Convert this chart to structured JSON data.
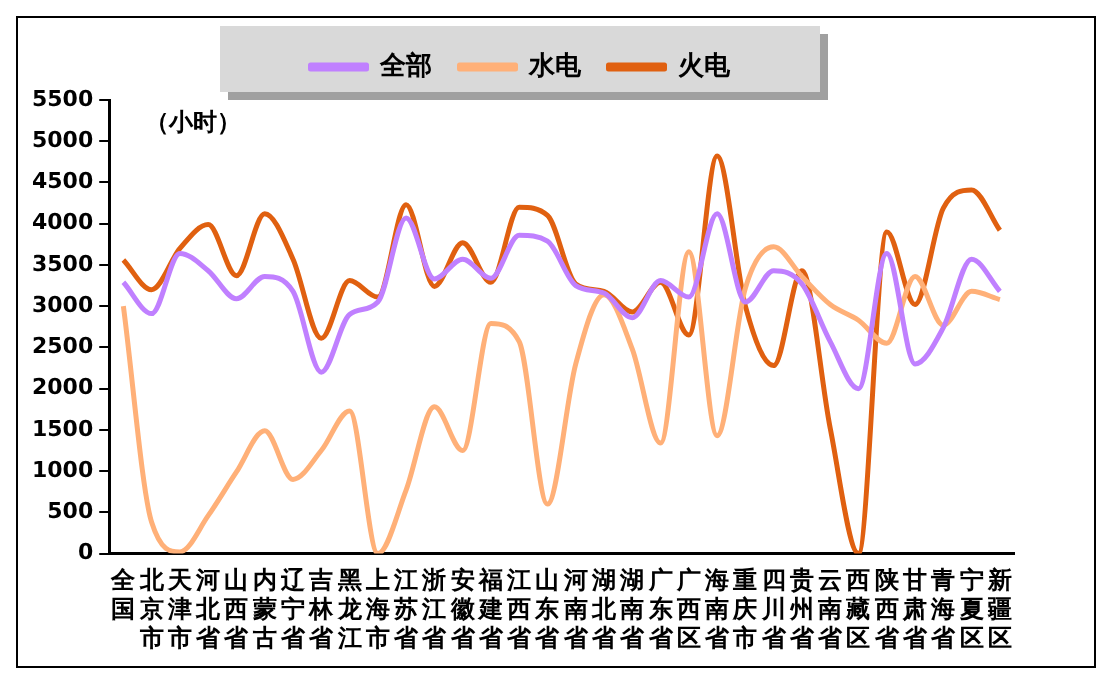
{
  "chart_data": {
    "type": "line",
    "ylabel": "（小时）",
    "categories": [
      "全国",
      "北京市",
      "天津市",
      "河北省",
      "山西省",
      "内蒙古",
      "辽宁省",
      "吉林省",
      "黑龙江",
      "上海市",
      "江苏省",
      "浙江省",
      "安徽省",
      "福建省",
      "江西省",
      "山东省",
      "河南省",
      "湖北省",
      "湖南省",
      "广东省",
      "广西区",
      "海南省",
      "重庆市",
      "四川省",
      "贵州省",
      "云南省",
      "西藏区",
      "陕西省",
      "甘肃省",
      "青海省",
      "宁夏区",
      "新疆区"
    ],
    "series": [
      {
        "name": "全部",
        "color": "#c080ff",
        "values": [
          3290,
          2910,
          3640,
          3430,
          3090,
          3360,
          3180,
          2200,
          2900,
          3050,
          4070,
          3330,
          3570,
          3340,
          3860,
          3790,
          3250,
          3160,
          2860,
          3310,
          3110,
          4120,
          3050,
          3430,
          3270,
          2570,
          2000,
          3640,
          2300,
          2740,
          3570,
          3180
        ]
      },
      {
        "name": "水电",
        "color": "#ffb078",
        "values": [
          3000,
          380,
          20,
          460,
          990,
          1490,
          900,
          1250,
          1730,
          0,
          770,
          1780,
          1250,
          2790,
          2570,
          600,
          2300,
          3140,
          2480,
          1340,
          3660,
          1430,
          3220,
          3720,
          3360,
          3020,
          2830,
          2550,
          3360,
          2770,
          3180,
          3080
        ]
      },
      {
        "name": "火电",
        "color": "#e06010",
        "values": [
          3560,
          3200,
          3700,
          3990,
          3370,
          4120,
          3570,
          2610,
          3310,
          3110,
          4230,
          3240,
          3770,
          3290,
          4200,
          4100,
          3270,
          3180,
          2930,
          3290,
          2650,
          4820,
          3000,
          2280,
          3430,
          1520,
          0,
          3900,
          3020,
          4190,
          4410,
          3920
        ]
      }
    ],
    "ylim": [
      0,
      5500
    ],
    "yticks": [
      0,
      500,
      1000,
      1500,
      2000,
      2500,
      3000,
      3500,
      4000,
      4500,
      5000,
      5500
    ],
    "grid": false,
    "legend": "top",
    "marker": "none",
    "line_style": "solid"
  }
}
